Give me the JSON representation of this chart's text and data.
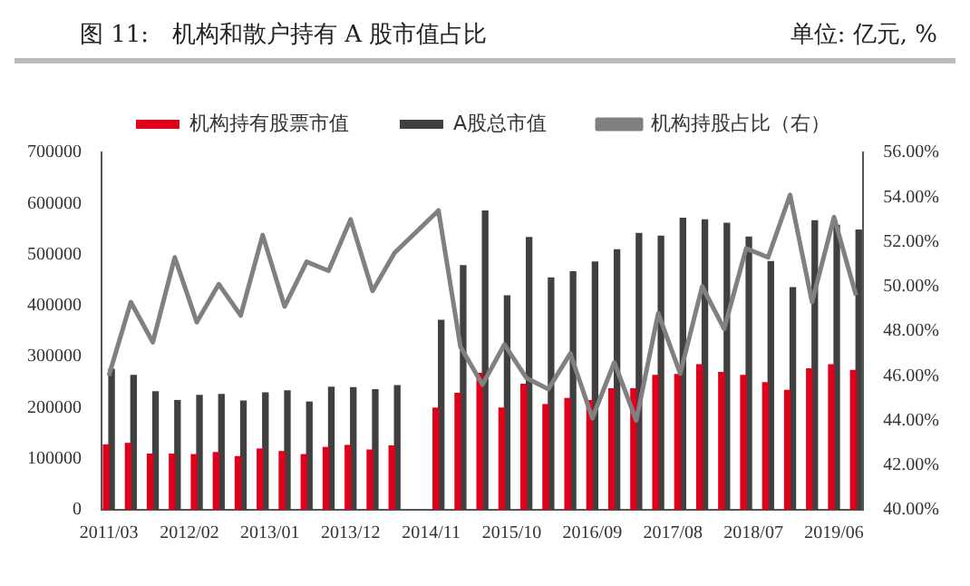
{
  "chart_data": {
    "type": "bar",
    "title": "图 11:　机构和散户持有 A 股市值占比",
    "subtitle": "单位: 亿元, %",
    "x": [
      "2011-03",
      "2011-06",
      "2011-09",
      "2011-12",
      "2012-03",
      "2012-06",
      "2012-09",
      "2012-12",
      "2013-03",
      "2013-06",
      "2013-09",
      "2013-12",
      "2014-03",
      "2014-06",
      "2014-12",
      "2015-03",
      "2015-06",
      "2015-09",
      "2015-12",
      "2016-03",
      "2016-06",
      "2016-09",
      "2016-12",
      "2017-03",
      "2017-06",
      "2017-09",
      "2017-12",
      "2018-03",
      "2018-06",
      "2018-09",
      "2018-12",
      "2019-03",
      "2019-06",
      "2019-09"
    ],
    "series": [
      {
        "name": "机构持有股票市值",
        "color": "#e0001b",
        "values": [
          127000,
          130000,
          109000,
          109000,
          108000,
          112000,
          104000,
          119000,
          114000,
          108000,
          122000,
          126000,
          117000,
          125000,
          199000,
          228000,
          267000,
          199000,
          246000,
          206000,
          218000,
          214000,
          237000,
          237000,
          263000,
          265000,
          284000,
          269000,
          263000,
          249000,
          234000,
          276000,
          284000,
          273000
        ]
      },
      {
        "name": "A股总市值",
        "color": "#404040",
        "values": [
          275000,
          263000,
          231000,
          214000,
          224000,
          226000,
          213000,
          229000,
          233000,
          211000,
          240000,
          239000,
          235000,
          243000,
          371000,
          478000,
          585000,
          419000,
          533000,
          454000,
          466000,
          485000,
          509000,
          541000,
          536000,
          571000,
          568000,
          561000,
          534000,
          486000,
          435000,
          566000,
          557000,
          548000
        ]
      },
      {
        "name": "机构持股占比（右）",
        "type": "line",
        "axis": "y2",
        "color": "#808080",
        "marker": "none",
        "values": [
          46.0,
          49.3,
          47.5,
          51.3,
          48.4,
          50.1,
          48.7,
          52.3,
          49.1,
          51.1,
          50.7,
          53.0,
          49.8,
          51.5,
          53.4,
          47.3,
          45.6,
          47.4,
          45.9,
          45.4,
          47.0,
          44.1,
          46.6,
          44.0,
          48.8,
          46.1,
          50.0,
          48.1,
          51.7,
          51.3,
          54.1,
          49.3,
          53.1,
          49.6
        ]
      }
    ],
    "xlim": [
      "2011-02",
      "2019-10"
    ],
    "xticks": [
      {
        "value": "2011-03",
        "label": "2011/03"
      },
      {
        "value": "2012-02",
        "label": "2012/02"
      },
      {
        "value": "2013-01",
        "label": "2013/01"
      },
      {
        "value": "2013-12",
        "label": "2013/12"
      },
      {
        "value": "2014-11",
        "label": "2014/11"
      },
      {
        "value": "2015-10",
        "label": "2015/10"
      },
      {
        "value": "2016-09",
        "label": "2016/09"
      },
      {
        "value": "2017-08",
        "label": "2017/08"
      },
      {
        "value": "2018-07",
        "label": "2018/07"
      },
      {
        "value": "2019-06",
        "label": "2019/06"
      }
    ],
    "ylim": [
      0,
      700000
    ],
    "yticks": [
      0,
      100000,
      200000,
      300000,
      400000,
      500000,
      600000,
      700000
    ],
    "y2lim": [
      40,
      56
    ],
    "y2ticks": [
      {
        "value": 40,
        "label": "40.00%"
      },
      {
        "value": 42,
        "label": "42.00%"
      },
      {
        "value": 44,
        "label": "44.00%"
      },
      {
        "value": 46,
        "label": "46.00%"
      },
      {
        "value": 48,
        "label": "48.00%"
      },
      {
        "value": 50,
        "label": "50.00%"
      },
      {
        "value": 52,
        "label": "52.00%"
      },
      {
        "value": 54,
        "label": "54.00%"
      },
      {
        "value": 56,
        "label": "56.00%"
      }
    ],
    "grid": false,
    "legend": "top"
  }
}
